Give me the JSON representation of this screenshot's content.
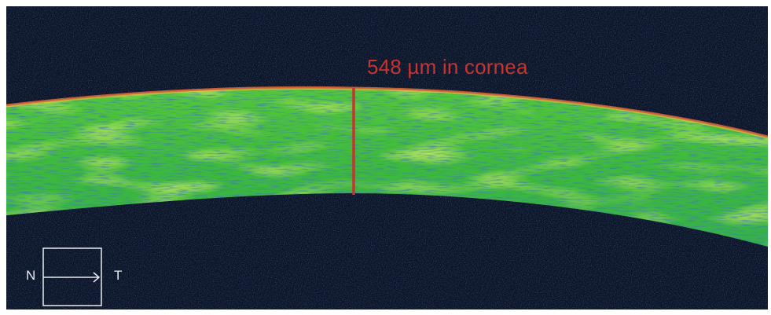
{
  "scan": {
    "measurement_label": "548 µm in cornea",
    "orientation_left": "N",
    "orientation_right": "T"
  },
  "colors": {
    "background": "#0b1326",
    "tissue_band": "#3fc23a",
    "tissue_highlight": "#b7e03a",
    "measurement": "#c8342e",
    "epithelium_edge": "#e0663a",
    "compass": "#e8ecef"
  },
  "icons": {
    "orientation": "orientation-compass-icon",
    "caliper": "thickness-caliper-icon"
  }
}
